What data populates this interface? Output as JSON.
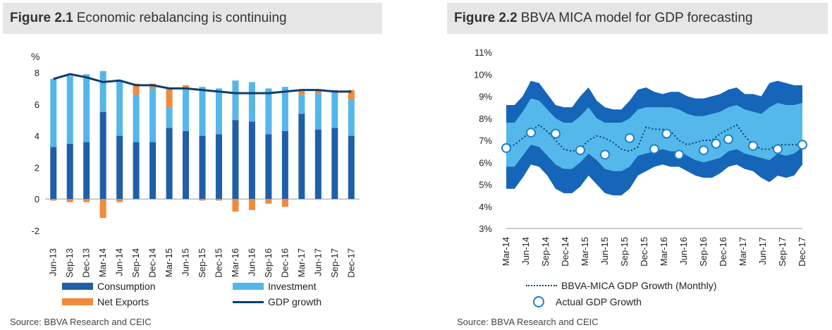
{
  "fig1": {
    "number": "Figure 2.1",
    "title": "Economic rebalancing is continuing",
    "source": "Source: BBVA Research and CEIC",
    "legend": {
      "consumption": "Consumption",
      "investment": "Investment",
      "net_exports": "Net Exports",
      "gdp": "GDP growth"
    }
  },
  "fig2": {
    "number": "Figure 2.2",
    "title": "BBVA MICA model for GDP forecasting",
    "source": "Source: BBVA Research and CEIC",
    "legend": {
      "line": "BBVA-MICA GDP Growth (Monthly)",
      "circles": "Actual GDP Growth"
    }
  },
  "colors": {
    "consumption": "#1f5fa9",
    "investment": "#55b6ea",
    "net_exports": "#f08a3c",
    "gdp_line": "#0c3e70",
    "band_outer": "#1565b8",
    "band_inner": "#55b8ea",
    "circle_stroke": "#1c82c9"
  },
  "chart_data": [
    {
      "type": "bar",
      "stacked": true,
      "ylabel": "%",
      "ylim": [
        -2,
        8
      ],
      "yticks": [
        -2,
        0,
        2,
        4,
        6,
        8
      ],
      "categories": [
        "Jun-13",
        "Sep-13",
        "Dec-13",
        "Mar-14",
        "Jun-14",
        "Sep-14",
        "Dec-14",
        "Mar-15",
        "Jun-15",
        "Sep-15",
        "Dec-15",
        "Mar-16",
        "Jun-16",
        "Sep-16",
        "Dec-16",
        "Mar-17",
        "Jun-17",
        "Sep-17",
        "Dec-17"
      ],
      "series": [
        {
          "name": "Consumption",
          "values": [
            3.3,
            3.5,
            3.6,
            5.5,
            4.0,
            3.6,
            3.6,
            4.5,
            4.3,
            4.0,
            4.1,
            5.0,
            4.9,
            4.1,
            4.3,
            5.4,
            4.4,
            4.5,
            4.0
          ]
        },
        {
          "name": "Investment",
          "values": [
            4.3,
            4.3,
            4.3,
            2.6,
            3.5,
            3.0,
            3.4,
            1.3,
            2.7,
            3.1,
            2.9,
            2.5,
            2.5,
            2.9,
            2.8,
            1.2,
            2.3,
            2.3,
            2.3
          ]
        },
        {
          "name": "Net Exports",
          "values": [
            -0.1,
            -0.2,
            -0.2,
            -1.2,
            -0.2,
            0.7,
            0.3,
            1.2,
            0.2,
            -0.1,
            -0.1,
            -0.8,
            -0.7,
            -0.3,
            -0.5,
            0.3,
            0.2,
            0.1,
            0.6
          ]
        },
        {
          "name": "GDP growth",
          "type": "line",
          "values": [
            7.6,
            7.9,
            7.7,
            7.4,
            7.5,
            7.2,
            7.2,
            7.0,
            7.0,
            6.9,
            6.8,
            6.7,
            6.7,
            6.7,
            6.8,
            6.9,
            6.9,
            6.8,
            6.8
          ]
        }
      ],
      "grid": false,
      "legend_position": "bottom"
    },
    {
      "type": "area",
      "ylim": [
        3,
        11
      ],
      "yticks": [
        "3%",
        "4%",
        "5%",
        "6%",
        "7%",
        "8%",
        "9%",
        "10%",
        "11%"
      ],
      "x_labels": [
        "Mar-14",
        "Jun-14",
        "Sep-14",
        "Dec-14",
        "Mar-15",
        "Jun-15",
        "Sep-15",
        "Dec-15",
        "Mar-16",
        "Jun-16",
        "Sep-16",
        "Dec-16",
        "Mar-17",
        "Jun-17",
        "Sep-17",
        "Dec-17"
      ],
      "outer_band": {
        "upper": [
          8.6,
          8.6,
          9.0,
          9.7,
          9.6,
          9.1,
          8.6,
          8.5,
          8.5,
          9.0,
          9.4,
          8.8,
          8.5,
          8.4,
          8.4,
          8.8,
          9.3,
          9.4,
          9.2,
          9.1,
          9.2,
          9.2,
          9.0,
          8.9,
          8.9,
          9.0,
          9.1,
          9.3,
          9.4,
          9.1,
          9.1,
          9.0,
          9.6,
          9.7,
          9.6,
          9.5,
          9.5
        ],
        "lower": [
          4.8,
          4.8,
          5.3,
          5.9,
          5.8,
          5.4,
          4.8,
          4.6,
          4.6,
          4.9,
          5.4,
          5.0,
          4.6,
          4.5,
          4.5,
          4.8,
          5.4,
          5.6,
          5.8,
          5.9,
          5.8,
          5.8,
          5.6,
          5.4,
          5.3,
          5.3,
          5.5,
          5.8,
          5.9,
          5.7,
          5.6,
          5.3,
          5.1,
          5.4,
          5.3,
          5.4,
          5.9
        ]
      },
      "inner_band": {
        "upper": [
          7.8,
          7.8,
          8.3,
          8.9,
          8.8,
          8.4,
          8.0,
          7.8,
          7.8,
          8.1,
          8.5,
          8.0,
          7.8,
          7.8,
          7.8,
          8.0,
          8.4,
          8.5,
          8.5,
          8.5,
          8.5,
          8.4,
          8.2,
          8.1,
          8.1,
          8.2,
          8.3,
          8.5,
          8.6,
          8.4,
          8.3,
          8.2,
          8.5,
          8.7,
          8.6,
          8.6,
          8.7
        ],
        "lower": [
          5.8,
          5.8,
          6.3,
          6.8,
          6.7,
          6.3,
          5.9,
          5.7,
          5.7,
          6.0,
          6.4,
          6.1,
          5.7,
          5.6,
          5.6,
          5.8,
          6.3,
          6.4,
          6.5,
          6.6,
          6.5,
          6.5,
          6.3,
          6.1,
          6.0,
          6.1,
          6.2,
          6.5,
          6.6,
          6.4,
          6.3,
          6.2,
          6.1,
          6.4,
          6.3,
          6.4,
          6.7
        ]
      },
      "series": [
        {
          "name": "BBVA-MICA GDP Growth (Monthly)",
          "type": "line",
          "values": [
            6.7,
            6.8,
            7.1,
            7.4,
            7.7,
            7.4,
            7.0,
            6.6,
            6.5,
            6.6,
            7.0,
            7.2,
            7.1,
            6.9,
            6.6,
            6.5,
            6.7,
            7.6,
            7.5,
            7.5,
            7.4,
            7.0,
            6.8,
            6.9,
            7.0,
            7.0,
            7.3,
            7.5,
            7.7,
            7.2,
            6.8,
            6.6,
            6.6,
            6.8,
            6.8,
            6.8,
            6.8
          ]
        },
        {
          "name": "Actual GDP Growth",
          "type": "scatter",
          "x_index": [
            0,
            3,
            6,
            9,
            12,
            15,
            18,
            21,
            24,
            27,
            30,
            33,
            36
          ],
          "values": [
            6.65,
            7.35,
            7.3,
            6.55,
            6.35,
            7.1,
            6.6,
            6.35,
            6.55,
            7.05,
            6.75,
            6.6,
            6.8
          ]
        }
      ],
      "actual_extra_points": [
        {
          "x_index_fraction": [
            19.5,
            25.5
          ],
          "values": [
            7.3,
            6.85
          ]
        }
      ],
      "grid": false,
      "legend_position": "bottom"
    }
  ]
}
